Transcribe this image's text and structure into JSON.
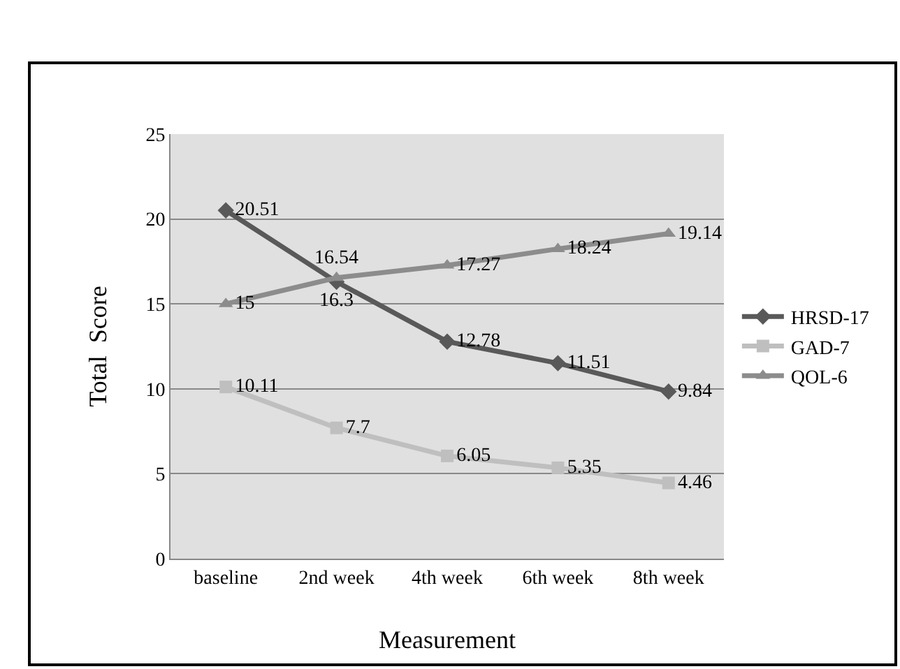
{
  "chart_data": {
    "type": "line",
    "xlabel": "Measurement",
    "ylabel": "Total  Score",
    "categories": [
      "baseline",
      "2nd week",
      "4th week",
      "6th week",
      "8th week"
    ],
    "series": [
      {
        "name": "HRSD-17",
        "color": "#595959",
        "marker": "diamond",
        "values": [
          20.51,
          16.3,
          12.78,
          11.51,
          9.84
        ]
      },
      {
        "name": "GAD-7",
        "color": "#bfbfbf",
        "marker": "square",
        "values": [
          10.11,
          7.7,
          6.05,
          5.35,
          4.46
        ]
      },
      {
        "name": "QOL-6",
        "color": "#8c8c8c",
        "marker": "triangle",
        "values": [
          15,
          16.54,
          17.27,
          18.24,
          19.14
        ]
      }
    ],
    "ylim": [
      0,
      25
    ],
    "yticks": [
      0,
      5,
      10,
      15,
      20,
      25
    ],
    "grid": "y",
    "legend": "right",
    "data_labels": true,
    "line_style": "solid"
  }
}
